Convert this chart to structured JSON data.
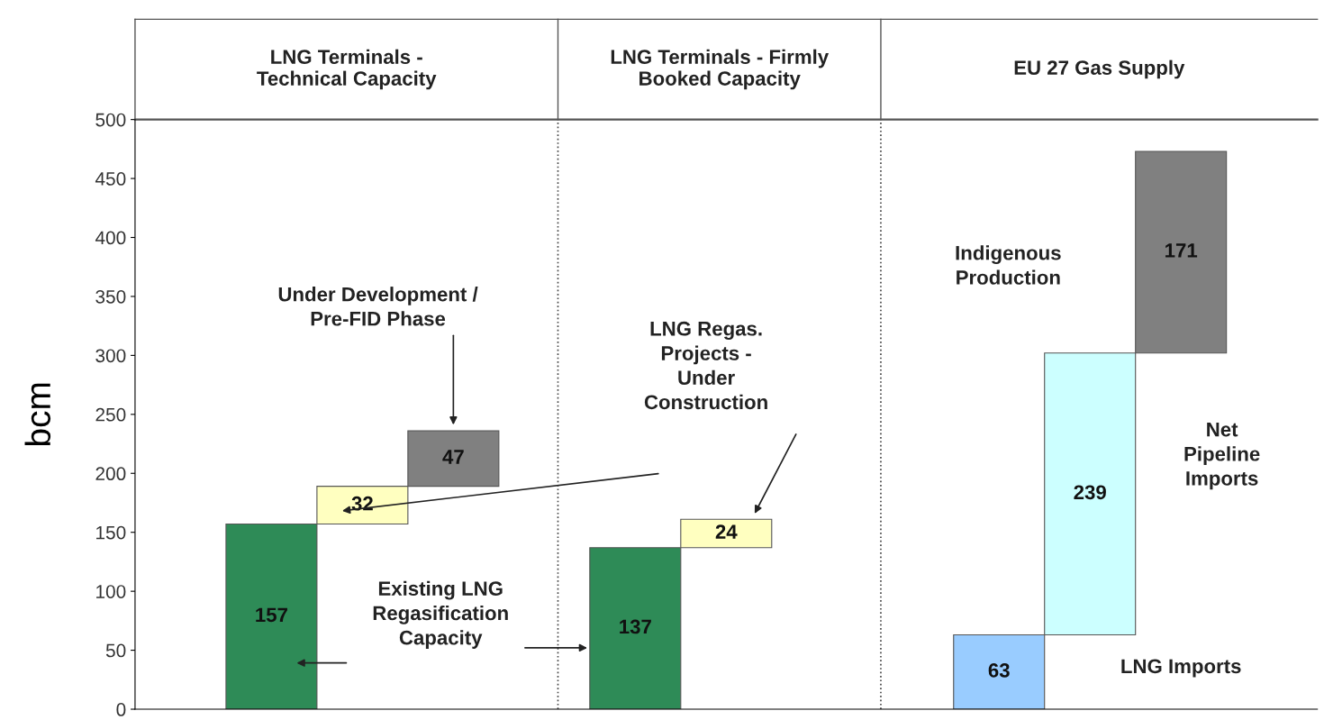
{
  "chart_data": {
    "type": "bar",
    "categories": [
      null,
      null,
      null,
      null,
      null,
      null,
      null,
      null,
      null,
      null,
      null,
      null,
      null
    ],
    "values": [
      null,
      157,
      32,
      47,
      null,
      137,
      24,
      null,
      null,
      63,
      239,
      171,
      null
    ],
    "base": [
      null,
      0,
      157,
      189,
      null,
      0,
      137,
      null,
      null,
      0,
      63,
      302,
      null
    ],
    "colors": [
      null,
      "#2e8b57",
      "#ffffc0",
      "#808080",
      null,
      "#2e8b57",
      "#ffffc0",
      null,
      null,
      "#99ccff",
      "#ccffff",
      "#808080",
      null
    ],
    "data_labels": true,
    "ylabel": "bcm",
    "ylim": [
      0,
      500
    ],
    "yticks": [
      0,
      50,
      100,
      150,
      200,
      250,
      300,
      350,
      400,
      450,
      500
    ],
    "grid": false,
    "annotations": [
      "LNG Terminals -\nTechnical Capacity",
      "LNG Terminals - Firmly\nBooked Capacity",
      "EU 27 Gas Supply",
      "Under Development /\nPre-FID Phase",
      "LNG Regas.\nProjects -\nUnder\nConstruction",
      "Existing LNG\nRegasification\nCapacity",
      "Indigenous\nProduction",
      "Net\nPipeline\nImports",
      "LNG Imports"
    ]
  }
}
